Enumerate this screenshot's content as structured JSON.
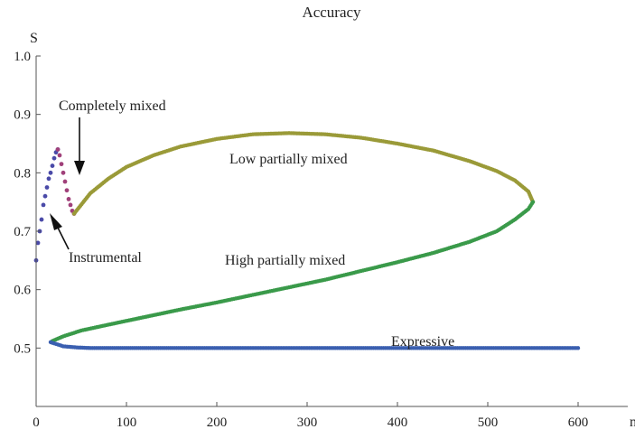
{
  "chart_data": {
    "type": "scatter",
    "title": "Accuracy",
    "xlabel": "n",
    "ylabel": "S",
    "xlim": [
      0,
      630
    ],
    "ylim": [
      0.4,
      1.0
    ],
    "x_ticks": [
      "0",
      "100",
      "200",
      "300",
      "400",
      "500",
      "600"
    ],
    "y_ticks": [
      "0.5",
      "0.6",
      "0.7",
      "0.8",
      "0.9",
      "1.0"
    ],
    "grid": false,
    "legend": "none",
    "colors": {
      "instrumental": "#4a4aa8",
      "completely_mixed": "#a0407a",
      "low_partially_mixed": "#9a9a38",
      "high_partially_mixed": "#3a9a4a",
      "expressive": "#3a5fb0"
    },
    "series": [
      {
        "x": [
          0,
          2,
          4,
          6,
          8,
          10,
          12,
          14,
          16,
          18,
          20,
          22,
          24
        ],
        "y": [
          0.65,
          0.68,
          0.7,
          0.72,
          0.745,
          0.76,
          0.775,
          0.79,
          0.8,
          0.812,
          0.825,
          0.835,
          0.84
        ]
      },
      {
        "x": [
          24,
          26,
          28,
          30,
          32,
          34,
          36,
          38,
          40,
          42
        ],
        "y": [
          0.84,
          0.83,
          0.815,
          0.8,
          0.785,
          0.77,
          0.755,
          0.745,
          0.735,
          0.73
        ]
      },
      {
        "x": [
          42,
          60,
          80,
          100,
          130,
          160,
          200,
          240,
          280,
          320,
          360,
          400,
          440,
          480,
          510,
          530,
          545,
          550
        ],
        "y": [
          0.73,
          0.765,
          0.79,
          0.81,
          0.83,
          0.845,
          0.858,
          0.866,
          0.868,
          0.866,
          0.86,
          0.85,
          0.838,
          0.82,
          0.803,
          0.787,
          0.768,
          0.75
        ]
      },
      {
        "x": [
          18,
          30,
          50,
          80,
          120,
          160,
          200,
          240,
          280,
          320,
          360,
          400,
          440,
          480,
          510,
          530,
          545,
          550
        ],
        "y": [
          0.512,
          0.52,
          0.53,
          0.54,
          0.553,
          0.566,
          0.578,
          0.591,
          0.604,
          0.617,
          0.632,
          0.647,
          0.663,
          0.682,
          0.7,
          0.72,
          0.738,
          0.75
        ]
      },
      {
        "x": [
          16,
          30,
          45,
          60,
          100,
          200,
          300,
          400,
          500,
          600
        ],
        "y": [
          0.51,
          0.503,
          0.501,
          0.5,
          0.5,
          0.5,
          0.5,
          0.5,
          0.5,
          0.5
        ]
      }
    ],
    "annotations": [
      {
        "text": "Completely mixed"
      },
      {
        "text": "Low partially mixed"
      },
      {
        "text": "Instrumental"
      },
      {
        "text": "High partially mixed"
      },
      {
        "text": "Expressive"
      }
    ]
  }
}
